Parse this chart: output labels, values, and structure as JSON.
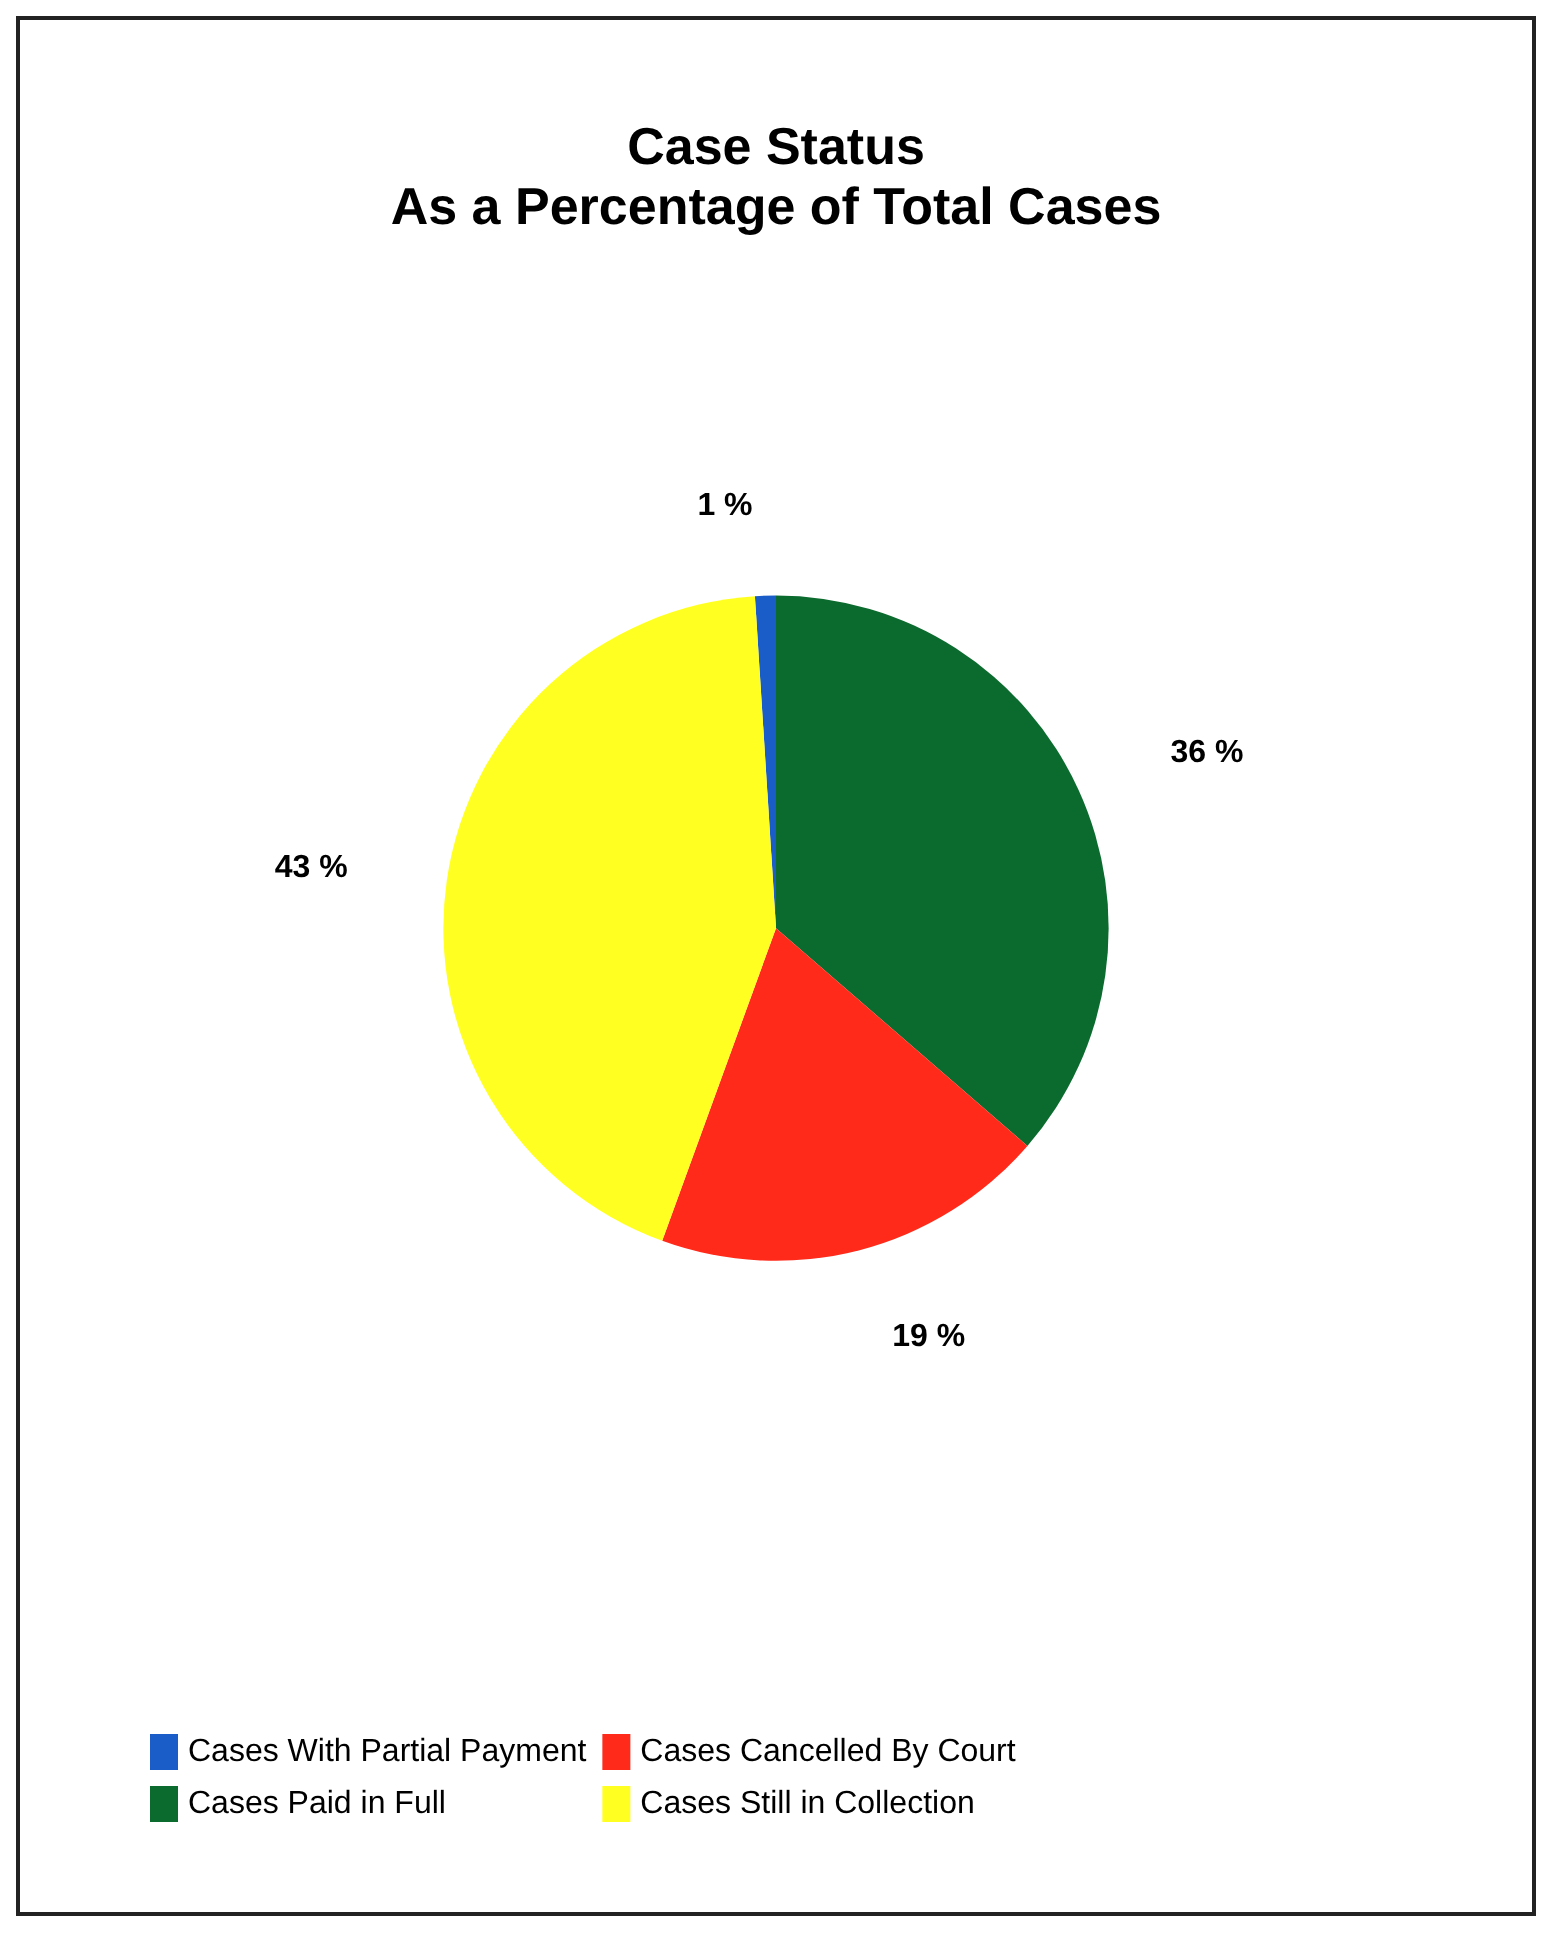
{
  "chart_data": {
    "type": "pie",
    "title": "Case Status",
    "subtitle": "As a Percentage of Total Cases",
    "categories": [
      "Cases With Partial Payment",
      "Cases Paid in Full",
      "Cases Cancelled By Court",
      "Cases Still in Collection"
    ],
    "values": [
      1,
      36,
      19,
      43
    ],
    "colors": [
      "#1a5cc8",
      "#0b6a2e",
      "#ff2a1a",
      "#ffff22"
    ],
    "value_labels": [
      "1 %",
      "36 %",
      "19 %",
      "43 %"
    ],
    "legend": "bottom"
  }
}
